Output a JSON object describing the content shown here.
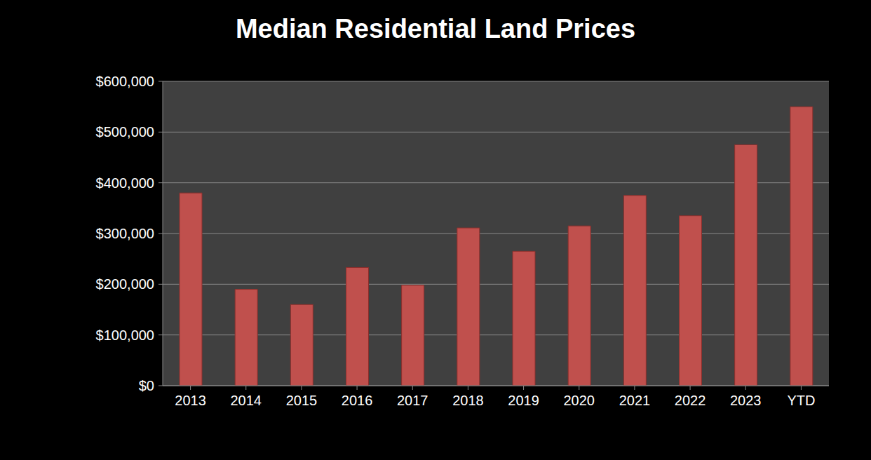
{
  "chart_data": {
    "type": "bar",
    "title": "Median Residential Land Prices",
    "categories": [
      "2013",
      "2014",
      "2015",
      "2016",
      "2017",
      "2018",
      "2019",
      "2020",
      "2021",
      "2022",
      "2023",
      "YTD"
    ],
    "values": [
      380000,
      190000,
      160000,
      233000,
      198000,
      311000,
      265000,
      315000,
      375000,
      335000,
      475000,
      550000
    ],
    "color": "#c0504d",
    "ylim": [
      0,
      600000
    ],
    "yticks": [
      {
        "value": 0,
        "label": "$0"
      },
      {
        "value": 100000,
        "label": "$100,000"
      },
      {
        "value": 200000,
        "label": "$200,000"
      },
      {
        "value": 300000,
        "label": "$300,000"
      },
      {
        "value": 400000,
        "label": "$400,000"
      },
      {
        "value": 500000,
        "label": "$500,000"
      },
      {
        "value": 600000,
        "label": "$600,000"
      }
    ],
    "grid": true
  }
}
